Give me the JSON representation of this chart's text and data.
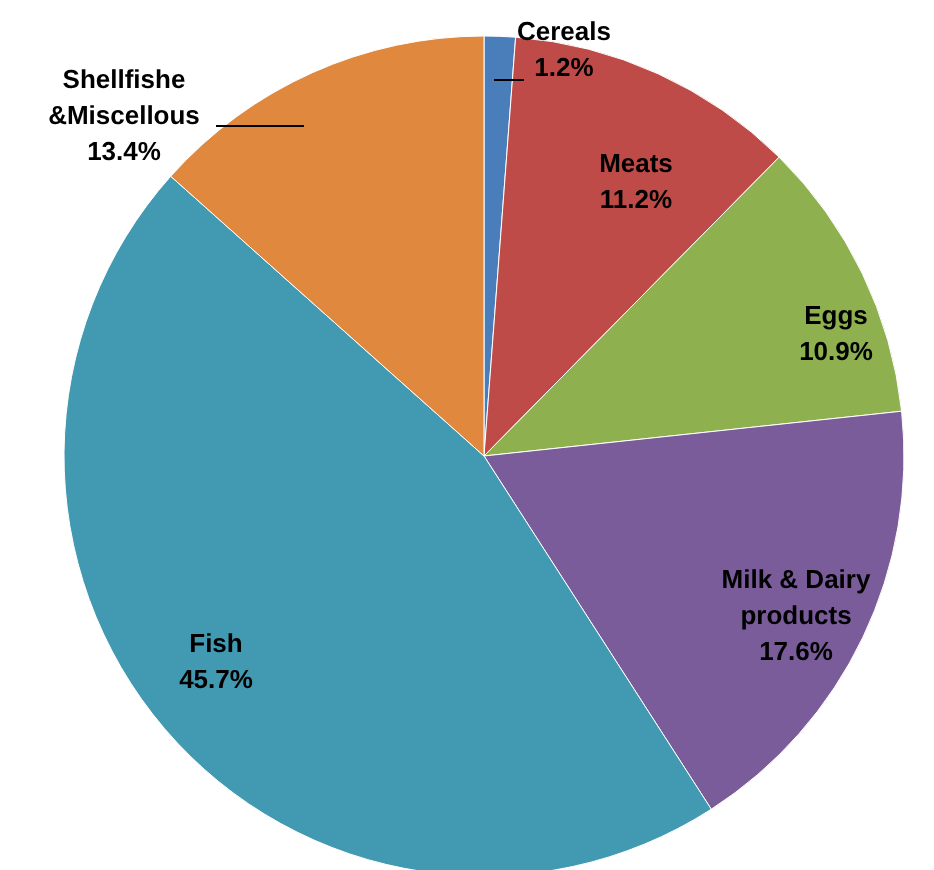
{
  "chart_data": {
    "type": "pie",
    "categories": [
      "Cereals",
      "Meats",
      "Eggs",
      "Milk & Dairy products",
      "Fish",
      "Shellfishe &Miscellous"
    ],
    "values": [
      1.2,
      11.2,
      10.9,
      17.6,
      45.7,
      13.4
    ],
    "value_labels": [
      "1.2%",
      "11.2%",
      "10.9%",
      "17.6%",
      "45.7%",
      "13.4%"
    ],
    "colors": [
      "#4a7ebb",
      "#be4b48",
      "#8fb04f",
      "#7a5c9a",
      "#4299b2",
      "#e0883e"
    ],
    "legend": false
  }
}
